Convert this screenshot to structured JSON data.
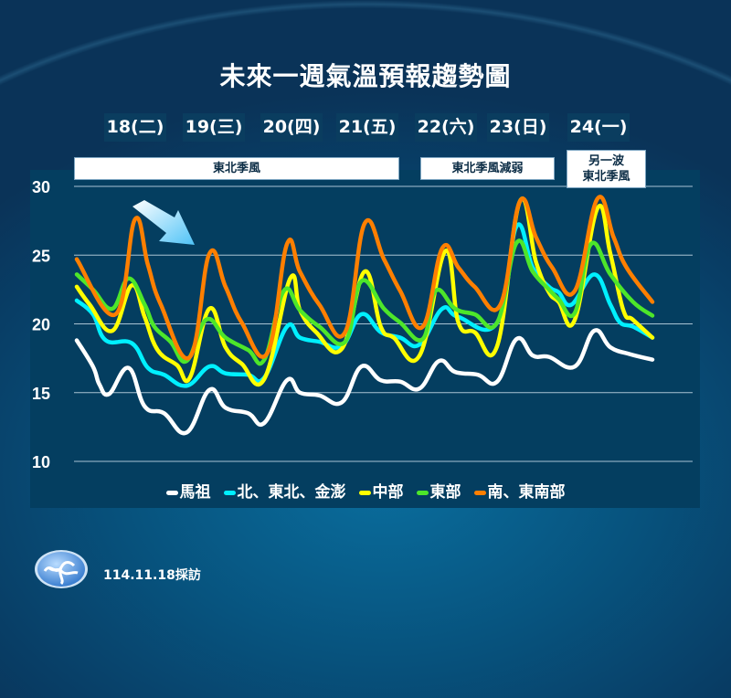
{
  "title": "未來一週氣溫預報趨勢圖",
  "days": [
    "18(二)",
    "19(三)",
    "20(四)",
    "21(五)",
    "22(六)",
    "23(日)",
    "24(一)"
  ],
  "banners": [
    "東北季風",
    "東北季風減弱",
    "另一波\n東北季風"
  ],
  "footer": {
    "date_text": "114.11.18採訪",
    "logo": "central-weather-administration-logo"
  },
  "chart_data": {
    "type": "line",
    "title": "未來一週氣溫預報趨勢圖",
    "xlabel": "",
    "ylabel": "",
    "x_unit": "hours from start of forecast (approximate)",
    "categories": [
      "18(二)",
      "19(三)",
      "20(四)",
      "21(五)",
      "22(六)",
      "23(日)",
      "24(一)"
    ],
    "ylim": [
      10,
      30
    ],
    "yticks": [
      10,
      15,
      20,
      25,
      30
    ],
    "grid": true,
    "legend": "bottom",
    "annotation": "cold-air arrow pointing down-right",
    "series": [
      {
        "name": "馬祖",
        "color": "#ffffff",
        "points": [
          [
            0,
            18.8
          ],
          [
            5,
            16.9
          ],
          [
            7,
            15.6
          ],
          [
            10,
            14.9
          ],
          [
            16,
            16.8
          ],
          [
            21,
            14.0
          ],
          [
            27,
            13.5
          ],
          [
            34,
            12.1
          ],
          [
            41,
            15.2
          ],
          [
            46,
            13.9
          ],
          [
            53,
            13.5
          ],
          [
            58,
            12.8
          ],
          [
            65,
            15.9
          ],
          [
            69,
            15.0
          ],
          [
            75,
            14.8
          ],
          [
            82,
            14.3
          ],
          [
            88,
            16.9
          ],
          [
            94,
            15.9
          ],
          [
            100,
            15.8
          ],
          [
            106,
            15.3
          ],
          [
            112,
            17.3
          ],
          [
            117,
            16.5
          ],
          [
            124,
            16.3
          ],
          [
            130,
            15.8
          ],
          [
            136,
            18.9
          ],
          [
            141,
            17.7
          ],
          [
            146,
            17.6
          ],
          [
            154,
            16.9
          ],
          [
            160,
            19.5
          ],
          [
            165,
            18.3
          ],
          [
            171,
            17.8
          ],
          [
            178,
            17.4
          ]
        ]
      },
      {
        "name": "北、東北、金澎",
        "color": "#00f0ff",
        "points": [
          [
            0,
            21.7
          ],
          [
            5,
            20.7
          ],
          [
            9,
            18.8
          ],
          [
            17,
            18.6
          ],
          [
            22,
            16.8
          ],
          [
            27,
            16.3
          ],
          [
            34,
            15.5
          ],
          [
            41,
            16.9
          ],
          [
            46,
            16.4
          ],
          [
            53,
            16.3
          ],
          [
            58,
            16.1
          ],
          [
            65,
            19.8
          ],
          [
            69,
            19.0
          ],
          [
            75,
            18.7
          ],
          [
            82,
            18.4
          ],
          [
            88,
            20.7
          ],
          [
            94,
            19.4
          ],
          [
            100,
            19.0
          ],
          [
            106,
            18.5
          ],
          [
            113,
            21.1
          ],
          [
            118,
            20.5
          ],
          [
            130,
            20.1
          ],
          [
            136,
            27.1
          ],
          [
            141,
            24.1
          ],
          [
            146,
            22.7
          ],
          [
            149,
            22.3
          ],
          [
            153,
            21.4
          ],
          [
            160,
            23.6
          ],
          [
            165,
            21.4
          ],
          [
            168,
            20.1
          ],
          [
            172,
            19.8
          ],
          [
            178,
            19.0
          ]
        ]
      },
      {
        "name": "中部",
        "color": "#ffff00",
        "points": [
          [
            0,
            22.7
          ],
          [
            4,
            21.4
          ],
          [
            11,
            19.5
          ],
          [
            17,
            22.8
          ],
          [
            21,
            20.5
          ],
          [
            25,
            18.1
          ],
          [
            31,
            17.0
          ],
          [
            35,
            16.1
          ],
          [
            41,
            21.1
          ],
          [
            46,
            18.3
          ],
          [
            51,
            17.1
          ],
          [
            58,
            16.0
          ],
          [
            66,
            23.3
          ],
          [
            69,
            21.0
          ],
          [
            74,
            19.4
          ],
          [
            82,
            18.2
          ],
          [
            89,
            23.8
          ],
          [
            94,
            19.8
          ],
          [
            98,
            19.0
          ],
          [
            106,
            17.7
          ],
          [
            114,
            25.3
          ],
          [
            118,
            20.1
          ],
          [
            123,
            19.4
          ],
          [
            130,
            18.4
          ],
          [
            137,
            28.9
          ],
          [
            142,
            24.5
          ],
          [
            146,
            22.3
          ],
          [
            149,
            21.6
          ],
          [
            154,
            20.3
          ],
          [
            161,
            28.4
          ],
          [
            165,
            25.1
          ],
          [
            169,
            21.0
          ],
          [
            172,
            20.3
          ],
          [
            178,
            19.0
          ]
        ]
      },
      {
        "name": "東部",
        "color": "#4de62a",
        "points": [
          [
            0,
            23.6
          ],
          [
            5,
            22.5
          ],
          [
            11,
            21.1
          ],
          [
            16,
            23.3
          ],
          [
            21,
            21.4
          ],
          [
            24,
            19.8
          ],
          [
            29,
            18.7
          ],
          [
            34,
            17.3
          ],
          [
            40,
            20.3
          ],
          [
            46,
            19.0
          ],
          [
            53,
            18.1
          ],
          [
            58,
            17.4
          ],
          [
            64,
            22.4
          ],
          [
            69,
            21.0
          ],
          [
            75,
            19.8
          ],
          [
            83,
            18.7
          ],
          [
            88,
            23.1
          ],
          [
            95,
            21.1
          ],
          [
            100,
            20.1
          ],
          [
            107,
            18.9
          ],
          [
            111,
            22.4
          ],
          [
            117,
            21.1
          ],
          [
            123,
            20.7
          ],
          [
            130,
            20.1
          ],
          [
            136,
            25.9
          ],
          [
            141,
            23.8
          ],
          [
            146,
            22.5
          ],
          [
            149,
            21.8
          ],
          [
            154,
            20.8
          ],
          [
            159,
            25.8
          ],
          [
            165,
            23.6
          ],
          [
            172,
            21.6
          ],
          [
            178,
            20.6
          ]
        ]
      },
      {
        "name": "南、東南部",
        "color": "#ff7f00",
        "points": [
          [
            0,
            24.7
          ],
          [
            12,
            20.7
          ],
          [
            18,
            27.6
          ],
          [
            22,
            24.3
          ],
          [
            26,
            21.4
          ],
          [
            35,
            17.6
          ],
          [
            41,
            25.1
          ],
          [
            46,
            22.7
          ],
          [
            51,
            20.1
          ],
          [
            59,
            17.9
          ],
          [
            65,
            25.8
          ],
          [
            69,
            23.8
          ],
          [
            75,
            21.4
          ],
          [
            83,
            19.4
          ],
          [
            89,
            27.3
          ],
          [
            95,
            24.7
          ],
          [
            100,
            22.4
          ],
          [
            107,
            19.8
          ],
          [
            113,
            25.5
          ],
          [
            118,
            24.1
          ],
          [
            123,
            22.7
          ],
          [
            131,
            21.4
          ],
          [
            137,
            28.9
          ],
          [
            142,
            26.3
          ],
          [
            147,
            24.1
          ],
          [
            154,
            22.4
          ],
          [
            161,
            29.1
          ],
          [
            166,
            26.3
          ],
          [
            170,
            24.1
          ],
          [
            178,
            21.6
          ]
        ]
      }
    ]
  }
}
